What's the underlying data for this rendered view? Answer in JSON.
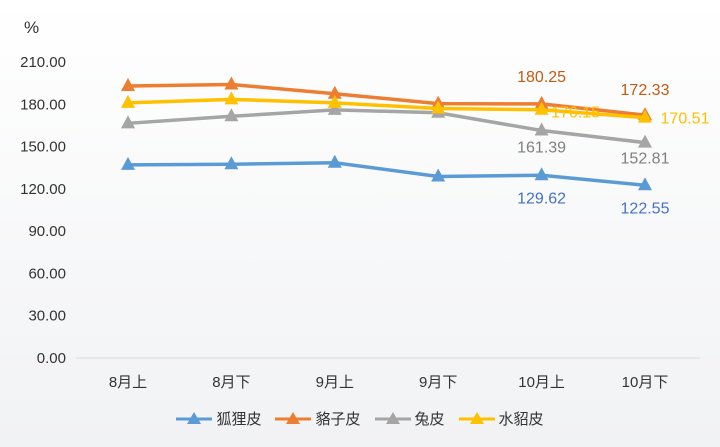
{
  "chart_data": {
    "type": "line",
    "ylabel": "%",
    "ylim": [
      0,
      210
    ],
    "yticks": [
      "0.00",
      "30.00",
      "60.00",
      "90.00",
      "120.00",
      "150.00",
      "180.00",
      "210.00"
    ],
    "categories": [
      "8月上",
      "8月下",
      "9月上",
      "9月下",
      "10月上",
      "10月下"
    ],
    "grid": false,
    "legend_position": "bottom",
    "marker": "triangle",
    "series": [
      {
        "name": "狐狸皮",
        "color": "#5b9bd5",
        "values": [
          137.0,
          137.5,
          138.5,
          128.8,
          129.62,
          122.55
        ],
        "labels": [
          null,
          null,
          null,
          null,
          "129.62",
          "122.55"
        ],
        "label_color": "#4472c4"
      },
      {
        "name": "貉子皮",
        "color": "#ed7d31",
        "values": [
          193.0,
          194.0,
          187.5,
          180.5,
          180.25,
          172.33
        ],
        "labels": [
          null,
          null,
          null,
          null,
          "180.25",
          "172.33"
        ],
        "label_color": "#c55a11"
      },
      {
        "name": "兔皮",
        "color": "#a5a5a5",
        "values": [
          166.5,
          171.5,
          176.0,
          174.0,
          161.39,
          152.81
        ],
        "labels": [
          null,
          null,
          null,
          null,
          "161.39",
          "152.81"
        ],
        "label_color": "#7f7f7f"
      },
      {
        "name": "水貂皮",
        "color": "#ffc000",
        "values": [
          181.0,
          183.5,
          181.0,
          177.0,
          176.15,
          170.51
        ],
        "labels": [
          null,
          null,
          null,
          null,
          "176.15",
          "170.51"
        ],
        "label_color": "#ffc000"
      }
    ]
  }
}
